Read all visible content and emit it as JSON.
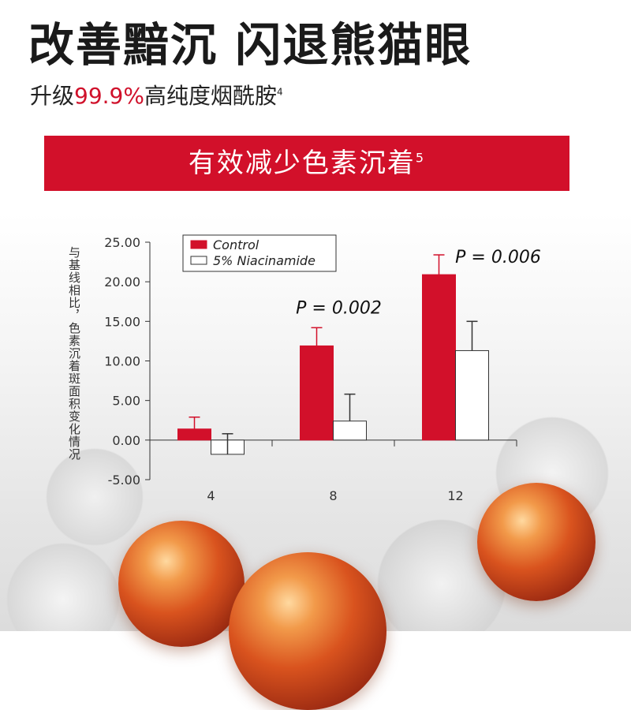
{
  "header": {
    "headline": "改善黯沉 闪退熊猫眼",
    "sub_prefix": "升级",
    "sub_accent": "99.9%",
    "sub_suffix": "高纯度烟酰胺",
    "sub_ref": "4"
  },
  "banner": {
    "text": "有效减少色素沉着",
    "ref": "5"
  },
  "chart_data": {
    "type": "bar",
    "categories": [
      "4",
      "8",
      "12"
    ],
    "ylabel": "与基线相比，色素沉着斑面积变化情况",
    "ylim": [
      -5,
      25
    ],
    "yticks": [
      "25.00",
      "20.00",
      "15.00",
      "10.00",
      "5.00",
      "0.00",
      "-5.00"
    ],
    "series": [
      {
        "name": "Control",
        "values": [
          1.4,
          11.9,
          20.9
        ],
        "errors": [
          1.5,
          2.3,
          2.5
        ],
        "color": "#d2102a"
      },
      {
        "name": "5% Niacinamide",
        "values": [
          -1.8,
          2.4,
          11.3
        ],
        "errors": [
          2.6,
          3.4,
          3.7
        ],
        "color": "#ffffff"
      }
    ],
    "annotations": [
      {
        "category": "8",
        "text": "P = 0.002"
      },
      {
        "category": "12",
        "text": "P = 0.006"
      }
    ],
    "legend": "top-left"
  }
}
